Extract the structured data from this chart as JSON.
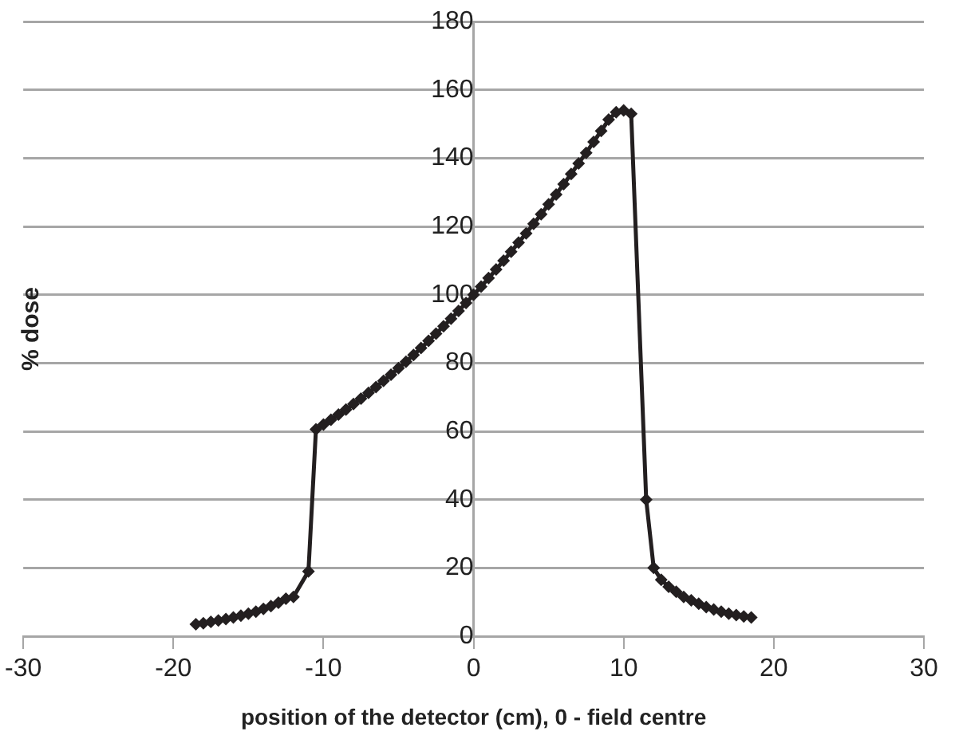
{
  "chart_data": {
    "type": "line",
    "xlabel": "position of the detector (cm), 0 - field centre",
    "ylabel": "% dose",
    "xlim": [
      -30,
      30
    ],
    "xticks": [
      -30,
      -20,
      -10,
      0,
      10,
      20,
      30
    ],
    "ylim": [
      0,
      180
    ],
    "yticks": [
      0,
      20,
      40,
      60,
      80,
      100,
      120,
      140,
      160,
      180
    ],
    "grid": "y",
    "legend": false,
    "marker": "diamond",
    "line_style": "solid",
    "series": [
      {
        "color": "#231f20",
        "x": [
          -18.5,
          -18,
          -17.5,
          -17,
          -16.5,
          -16,
          -15.5,
          -15,
          -14.5,
          -14,
          -13.5,
          -13,
          -12.5,
          -12,
          -11,
          -10.5,
          -10,
          -9.5,
          -9,
          -8.5,
          -8,
          -7.5,
          -7,
          -6.5,
          -6,
          -5.5,
          -5,
          -4.5,
          -4,
          -3.5,
          -3,
          -2.5,
          -2,
          -1.5,
          -1,
          -0.5,
          0,
          0.5,
          1,
          1.5,
          2,
          2.5,
          3,
          3.5,
          4,
          4.5,
          5,
          5.5,
          6,
          6.5,
          7,
          7.5,
          8,
          8.5,
          9,
          9.5,
          10,
          10.5,
          11.5,
          12,
          12.5,
          13,
          13.5,
          14,
          14.5,
          15,
          15.5,
          16,
          16.5,
          17,
          17.5,
          18,
          18.5
        ],
        "values": [
          3.5,
          3.8,
          4.2,
          4.6,
          5,
          5.5,
          6,
          6.6,
          7.2,
          8,
          8.8,
          9.8,
          11,
          11.5,
          19,
          60.6,
          62,
          63.4,
          64.9,
          66.4,
          68,
          69.6,
          71.3,
          73,
          74.8,
          76.6,
          78.5,
          80.4,
          82.4,
          84.4,
          86.5,
          88.6,
          90.8,
          93,
          95.3,
          97.6,
          100,
          102.4,
          104.9,
          107.4,
          110,
          112.6,
          115.3,
          118,
          120.8,
          123.6,
          126.5,
          129.4,
          132.4,
          135.4,
          138.5,
          141.6,
          144.8,
          148,
          151.3,
          153.5,
          154,
          153,
          40,
          20,
          16.5,
          14.5,
          13,
          11.5,
          10.5,
          9.5,
          8.5,
          7.8,
          7.2,
          6.6,
          6.2,
          5.8,
          5.5
        ]
      }
    ]
  }
}
